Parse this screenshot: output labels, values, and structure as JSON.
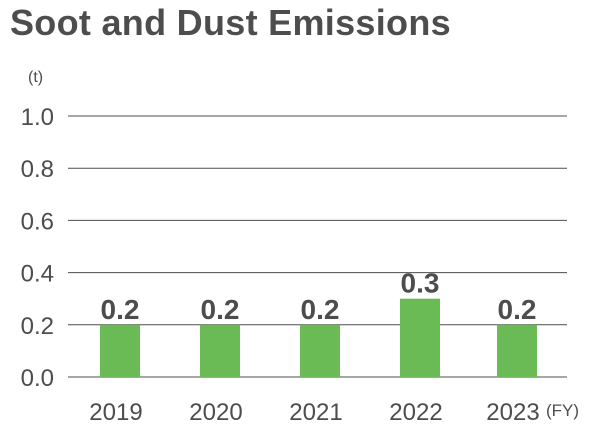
{
  "chart_data": {
    "type": "bar",
    "title": "Soot and Dust Emissions",
    "y_unit": "(t)",
    "x_unit": "(FY)",
    "categories": [
      "2019",
      "2020",
      "2021",
      "2022",
      "2023"
    ],
    "values": [
      0.2,
      0.2,
      0.2,
      0.3,
      0.2
    ],
    "data_labels": [
      "0.2",
      "0.2",
      "0.2",
      "0.3",
      "0.2"
    ],
    "ylim": [
      0,
      1.0
    ],
    "yticks": [
      "0.0",
      "0.2",
      "0.4",
      "0.6",
      "0.8",
      "1.0"
    ],
    "grid": true,
    "bar_color": "#6aba55",
    "grid_color": "#4d4d4d"
  }
}
